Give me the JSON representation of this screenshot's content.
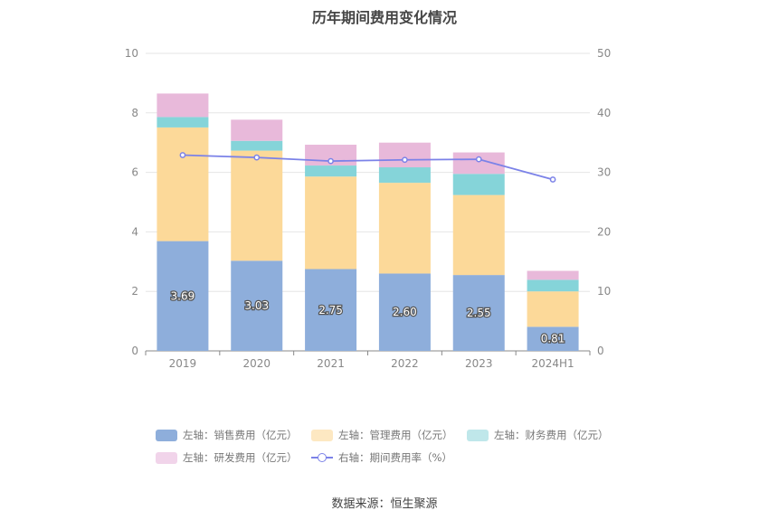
{
  "chart_data": {
    "type": "bar",
    "title": "历年期间费用变化情况",
    "categories": [
      "2019",
      "2020",
      "2021",
      "2022",
      "2023",
      "2024H1"
    ],
    "y_left": {
      "ylim": [
        0,
        10
      ],
      "ticks": [
        "0",
        "2",
        "4",
        "6",
        "8",
        "10"
      ]
    },
    "y_right": {
      "ylim": [
        0,
        50
      ],
      "ticks": [
        "0",
        "10",
        "20",
        "30",
        "40",
        "50"
      ]
    },
    "series": [
      {
        "name": "左轴：销售费用（亿元）",
        "type": "bar",
        "axis": "left",
        "color": "#8eaedb",
        "values": [
          3.69,
          3.03,
          2.75,
          2.6,
          2.55,
          0.81
        ],
        "labels": [
          "3.69",
          "3.03",
          "2.75",
          "2.60",
          "2.55",
          "0.81"
        ]
      },
      {
        "name": "左轴：管理费用（亿元）",
        "type": "bar",
        "axis": "left",
        "color": "#fcd999",
        "legend_color": "#fde8c2",
        "values": [
          3.82,
          3.7,
          3.11,
          3.05,
          2.69,
          1.19
        ]
      },
      {
        "name": "左轴：财务费用（亿元）",
        "type": "bar",
        "axis": "left",
        "color": "#85d4d9",
        "legend_color": "#bfe7ea",
        "values": [
          0.35,
          0.33,
          0.37,
          0.52,
          0.71,
          0.39
        ]
      },
      {
        "name": "左轴：研发费用（亿元）",
        "type": "bar",
        "axis": "left",
        "color": "#e8b9da",
        "legend_color": "#f1d4ea",
        "values": [
          0.79,
          0.71,
          0.7,
          0.83,
          0.72,
          0.3
        ]
      },
      {
        "name": "右轴：期间费用率（%）",
        "type": "line",
        "axis": "right",
        "color": "#7b82e8",
        "values": [
          32.9,
          32.5,
          31.9,
          32.1,
          32.2,
          28.8
        ]
      }
    ],
    "grid": true,
    "legend_position": "bottom"
  },
  "source": "数据来源：恒生聚源"
}
